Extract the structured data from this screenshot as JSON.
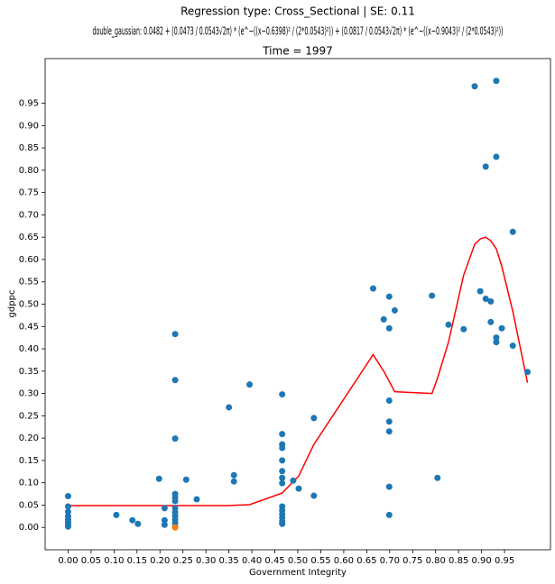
{
  "chart_data": {
    "type": "scatter",
    "title": [
      "Regression type: Cross_Sectional | SE: 0.11",
      "double_gaussian: 0.0482 + (0.0473 / 0.0543√2π) * (e^−((x−0.6398)² / (2*0.0543)²)) + (0.0817 / 0.0543√2π) * (e^−((x−0.9043)² / (2*0.0543)²))",
      "Time = 1997"
    ],
    "x_label": "Government Integrity",
    "y_label": "gdppc",
    "xlim": [
      -0.05,
      1.05
    ],
    "ylim": [
      -0.05,
      1.05
    ],
    "xticks": [
      {
        "value": 0,
        "label": "0.00"
      },
      {
        "value": 0.05,
        "label": "0.05"
      },
      {
        "value": 0.1,
        "label": "0.10"
      },
      {
        "value": 0.15,
        "label": "0.15"
      },
      {
        "value": 0.2,
        "label": "0.20"
      },
      {
        "value": 0.25,
        "label": "0.25"
      },
      {
        "value": 0.3,
        "label": "0.30"
      },
      {
        "value": 0.35,
        "label": "0.35"
      },
      {
        "value": 0.4,
        "label": "0.40"
      },
      {
        "value": 0.45,
        "label": "0.45"
      },
      {
        "value": 0.5,
        "label": "0.50"
      },
      {
        "value": 0.55,
        "label": "0.55"
      },
      {
        "value": 0.6,
        "label": "0.60"
      },
      {
        "value": 0.65,
        "label": "0.65"
      },
      {
        "value": 0.7,
        "label": "0.70"
      },
      {
        "value": 0.75,
        "label": "0.75"
      },
      {
        "value": 0.8,
        "label": "0.80"
      },
      {
        "value": 0.85,
        "label": "0.85"
      },
      {
        "value": 0.9,
        "label": "0.90"
      },
      {
        "value": 0.95,
        "label": "0.95"
      }
    ],
    "yticks": [
      {
        "value": 0,
        "label": "0.00"
      },
      {
        "value": 0.05,
        "label": "0.05"
      },
      {
        "value": 0.1,
        "label": "0.10"
      },
      {
        "value": 0.15,
        "label": "0.15"
      },
      {
        "value": 0.2,
        "label": "0.20"
      },
      {
        "value": 0.25,
        "label": "0.25"
      },
      {
        "value": 0.3,
        "label": "0.30"
      },
      {
        "value": 0.35,
        "label": "0.35"
      },
      {
        "value": 0.4,
        "label": "0.40"
      },
      {
        "value": 0.45,
        "label": "0.45"
      },
      {
        "value": 0.5,
        "label": "0.50"
      },
      {
        "value": 0.55,
        "label": "0.55"
      },
      {
        "value": 0.6,
        "label": "0.60"
      },
      {
        "value": 0.65,
        "label": "0.65"
      },
      {
        "value": 0.7,
        "label": "0.70"
      },
      {
        "value": 0.75,
        "label": "0.75"
      },
      {
        "value": 0.8,
        "label": "0.80"
      },
      {
        "value": 0.85,
        "label": "0.85"
      },
      {
        "value": 0.9,
        "label": "0.90"
      },
      {
        "value": 0.95,
        "label": "0.95"
      }
    ],
    "series": [
      {
        "type": "line",
        "color": "#ff0000",
        "x": [
          0,
          0.233,
          0.35,
          0.395,
          0.466,
          0.502,
          0.535,
          0.664,
          0.687,
          0.711,
          0.792,
          0.804,
          0.828,
          0.861,
          0.885,
          0.897,
          0.909,
          0.92,
          0.932,
          0.944,
          0.968,
          1.0
        ],
        "values": [
          0.049,
          0.049,
          0.049,
          0.051,
          0.077,
          0.115,
          0.186,
          0.387,
          0.35,
          0.304,
          0.3,
          0.334,
          0.415,
          0.565,
          0.634,
          0.646,
          0.65,
          0.642,
          0.624,
          0.585,
          0.484,
          0.324
        ]
      },
      {
        "type": "scatter",
        "color": "#1f77b4",
        "x": [
          0,
          0,
          0,
          0,
          0,
          0,
          0,
          0,
          0.105,
          0.14,
          0.152,
          0.198,
          0.21,
          0.21,
          0.21,
          0.233,
          0.233,
          0.233,
          0.233,
          0.233,
          0.233,
          0.233,
          0.233,
          0.233,
          0.233,
          0.233,
          0.233,
          0.257,
          0.28,
          0.35,
          0.361,
          0.361,
          0.395,
          0.466,
          0.466,
          0.466,
          0.466,
          0.466,
          0.466,
          0.466,
          0.466,
          0.466,
          0.466,
          0.466,
          0.466,
          0.466,
          0.466,
          0.49,
          0.502,
          0.535,
          0.535,
          0.664,
          0.687,
          0.699,
          0.699,
          0.699,
          0.699,
          0.699,
          0.699,
          0.699,
          0.711,
          0.792,
          0.804,
          0.828,
          0.861,
          0.885,
          0.897,
          0.909,
          0.909,
          0.92,
          0.92,
          0.932,
          0.932,
          0.932,
          0.932,
          0.944,
          0.968,
          0.968,
          1.0
        ],
        "values": [
          0.07,
          0.047,
          0.035,
          0.025,
          0.018,
          0.012,
          0.006,
          0.002,
          0.028,
          0.016,
          0.008,
          0.109,
          0.043,
          0.016,
          0.006,
          0.433,
          0.33,
          0.199,
          0.075,
          0.067,
          0.059,
          0.043,
          0.034,
          0.026,
          0.018,
          0.01,
          0.002,
          0.107,
          0.063,
          0.269,
          0.117,
          0.103,
          0.32,
          0.298,
          0.209,
          0.186,
          0.178,
          0.15,
          0.126,
          0.111,
          0.099,
          0.047,
          0.038,
          0.03,
          0.022,
          0.014,
          0.008,
          0.105,
          0.087,
          0.245,
          0.071,
          0.535,
          0.466,
          0.517,
          0.446,
          0.284,
          0.237,
          0.215,
          0.091,
          0.028,
          0.486,
          0.519,
          0.111,
          0.454,
          0.444,
          0.988,
          0.529,
          0.808,
          0.512,
          0.506,
          0.46,
          1.0,
          0.83,
          0.425,
          0.415,
          0.446,
          0.662,
          0.407,
          0.348
        ]
      },
      {
        "type": "scatter",
        "color": "#ff7f0e",
        "x": [
          0.233
        ],
        "values": [
          0.0
        ]
      }
    ]
  }
}
